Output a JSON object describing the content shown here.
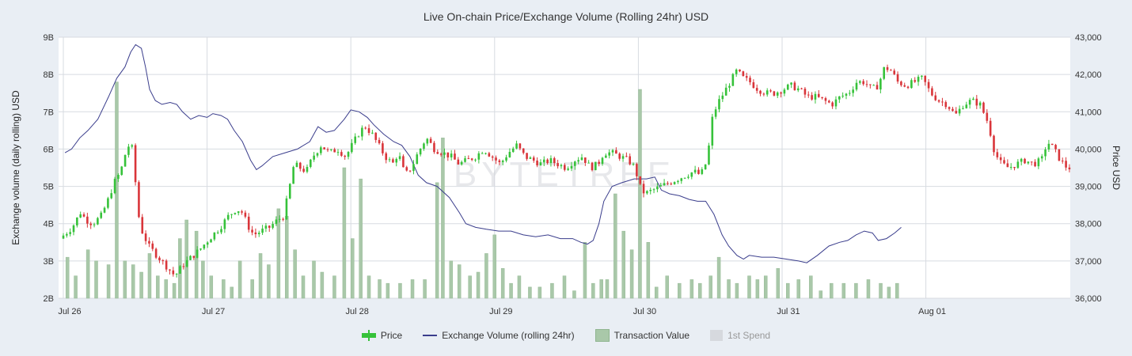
{
  "title": "Live On-chain Price/Exchange Volume (Rolling 24hr) USD",
  "watermark": "BYTETREE",
  "colors": {
    "up": "#36c23a",
    "down": "#d9353a",
    "line": "#3a3d8c",
    "bars": "#a9c8a9",
    "spend": "#d6d9de",
    "grid": "#d7dbe1",
    "plot_bg": "#ffffff"
  },
  "legend": [
    {
      "label": "Price",
      "icon": "candle-icon"
    },
    {
      "label": "Exchange Volume (rolling 24hr)",
      "icon": "line-icon"
    },
    {
      "label": "Transaction Value",
      "icon": "bar-icon"
    },
    {
      "label": "1st Spend",
      "icon": "bar-icon"
    }
  ],
  "chart_data": {
    "type": "candlestick+line+bar",
    "title": "Live On-chain Price/Exchange Volume (Rolling 24hr) USD",
    "x_tick_labels": [
      "Jul 26",
      "Jul 27",
      "Jul 28",
      "Jul 29",
      "Jul 30",
      "Jul 31",
      "Aug 01"
    ],
    "x_range_days": [
      0,
      7.35
    ],
    "left_axis": {
      "label": "Exchange volume (daily rolling) USD",
      "range": [
        2,
        9
      ],
      "ticks": [
        "2B",
        "3B",
        "4B",
        "5B",
        "6B",
        "7B",
        "8B",
        "9B"
      ],
      "unit": "B"
    },
    "right_axis": {
      "label": "Price USD",
      "range": [
        36000,
        43000
      ],
      "ticks": [
        "36,000",
        "37,000",
        "38,000",
        "39,000",
        "40,000",
        "41,000",
        "42,000",
        "43,000"
      ]
    },
    "grid": true,
    "legend_position": "bottom",
    "exchange_volume_B": [
      [
        0.02,
        5.9
      ],
      [
        0.1,
        6.0
      ],
      [
        0.2,
        6.3
      ],
      [
        0.3,
        6.5
      ],
      [
        0.42,
        6.8
      ],
      [
        0.55,
        7.4
      ],
      [
        0.65,
        7.9
      ],
      [
        0.75,
        8.2
      ],
      [
        0.82,
        8.6
      ],
      [
        0.88,
        8.8
      ],
      [
        0.95,
        8.7
      ],
      [
        1.0,
        8.2
      ],
      [
        1.05,
        7.6
      ],
      [
        1.12,
        7.3
      ],
      [
        1.2,
        7.2
      ],
      [
        1.3,
        7.25
      ],
      [
        1.38,
        7.2
      ],
      [
        1.45,
        7.0
      ],
      [
        1.55,
        6.8
      ],
      [
        1.65,
        6.9
      ],
      [
        1.75,
        6.85
      ],
      [
        1.82,
        6.95
      ],
      [
        1.92,
        6.9
      ],
      [
        2.0,
        6.8
      ],
      [
        2.08,
        6.5
      ],
      [
        2.18,
        6.2
      ],
      [
        2.28,
        5.7
      ],
      [
        2.35,
        5.45
      ],
      [
        2.42,
        5.55
      ],
      [
        2.55,
        5.8
      ],
      [
        2.7,
        5.9
      ],
      [
        2.85,
        6.0
      ],
      [
        3.0,
        6.2
      ],
      [
        3.1,
        6.6
      ],
      [
        3.2,
        6.45
      ],
      [
        3.3,
        6.5
      ],
      [
        3.42,
        6.8
      ],
      [
        3.5,
        7.05
      ],
      [
        3.6,
        7.0
      ],
      [
        3.7,
        6.85
      ],
      [
        3.78,
        6.65
      ],
      [
        3.9,
        6.4
      ],
      [
        4.02,
        6.2
      ],
      [
        4.12,
        6.1
      ],
      [
        4.22,
        5.8
      ],
      [
        4.32,
        5.3
      ],
      [
        4.42,
        5.1
      ],
      [
        4.55,
        5.0
      ],
      [
        4.7,
        4.7
      ],
      [
        4.82,
        4.3
      ],
      [
        4.9,
        4.0
      ],
      [
        5.02,
        3.9
      ],
      [
        5.15,
        3.85
      ],
      [
        5.3,
        3.8
      ],
      [
        5.45,
        3.8
      ],
      [
        5.6,
        3.7
      ],
      [
        5.75,
        3.65
      ],
      [
        5.9,
        3.7
      ],
      [
        6.05,
        3.6
      ],
      [
        6.2,
        3.6
      ],
      [
        6.3,
        3.5
      ],
      [
        6.38,
        3.45
      ],
      [
        6.45,
        3.55
      ],
      [
        6.52,
        4.0
      ],
      [
        6.58,
        4.6
      ],
      [
        6.68,
        5.0
      ],
      [
        6.8,
        5.1
      ],
      [
        6.95,
        5.2
      ],
      [
        7.1,
        5.2
      ],
      [
        7.2,
        5.25
      ],
      [
        7.28,
        4.9
      ],
      [
        7.38,
        4.8
      ],
      [
        7.5,
        4.75
      ],
      [
        7.62,
        4.65
      ],
      [
        7.72,
        4.6
      ],
      [
        7.82,
        4.6
      ],
      [
        7.92,
        4.25
      ],
      [
        8.02,
        3.7
      ],
      [
        8.1,
        3.4
      ],
      [
        8.2,
        3.15
      ],
      [
        8.28,
        3.05
      ],
      [
        8.35,
        3.15
      ],
      [
        8.5,
        3.1
      ],
      [
        8.65,
        3.1
      ],
      [
        8.8,
        3.05
      ],
      [
        8.95,
        3.0
      ],
      [
        9.05,
        2.95
      ],
      [
        9.18,
        3.15
      ],
      [
        9.32,
        3.4
      ],
      [
        9.45,
        3.5
      ],
      [
        9.55,
        3.55
      ],
      [
        9.65,
        3.7
      ],
      [
        9.75,
        3.8
      ],
      [
        9.85,
        3.75
      ],
      [
        9.92,
        3.55
      ],
      [
        10.02,
        3.6
      ],
      [
        10.12,
        3.75
      ],
      [
        10.2,
        3.9
      ]
    ],
    "transaction_value_B": [
      [
        0.05,
        3.1
      ],
      [
        0.15,
        2.6
      ],
      [
        0.3,
        3.3
      ],
      [
        0.4,
        3.0
      ],
      [
        0.55,
        2.9
      ],
      [
        0.65,
        7.8
      ],
      [
        0.75,
        3.0
      ],
      [
        0.85,
        2.9
      ],
      [
        0.95,
        2.7
      ],
      [
        1.05,
        3.2
      ],
      [
        1.15,
        2.6
      ],
      [
        1.25,
        2.5
      ],
      [
        1.35,
        2.4
      ],
      [
        1.42,
        3.6
      ],
      [
        1.5,
        4.1
      ],
      [
        1.62,
        3.8
      ],
      [
        1.7,
        3.0
      ],
      [
        1.8,
        2.6
      ],
      [
        1.95,
        2.5
      ],
      [
        2.05,
        2.3
      ],
      [
        2.15,
        3.0
      ],
      [
        2.3,
        2.5
      ],
      [
        2.4,
        3.2
      ],
      [
        2.5,
        2.9
      ],
      [
        2.62,
        4.4
      ],
      [
        2.72,
        4.2
      ],
      [
        2.82,
        3.3
      ],
      [
        2.92,
        2.6
      ],
      [
        3.05,
        3.0
      ],
      [
        3.15,
        2.7
      ],
      [
        3.3,
        2.6
      ],
      [
        3.42,
        5.5
      ],
      [
        3.52,
        3.6
      ],
      [
        3.62,
        5.2
      ],
      [
        3.72,
        2.6
      ],
      [
        3.85,
        2.5
      ],
      [
        3.95,
        2.4
      ],
      [
        4.1,
        2.4
      ],
      [
        4.25,
        2.5
      ],
      [
        4.4,
        2.5
      ],
      [
        4.55,
        5.1
      ],
      [
        4.62,
        6.3
      ],
      [
        4.72,
        3.0
      ],
      [
        4.82,
        2.9
      ],
      [
        4.95,
        2.6
      ],
      [
        5.05,
        2.7
      ],
      [
        5.15,
        3.2
      ],
      [
        5.25,
        3.7
      ],
      [
        5.35,
        2.8
      ],
      [
        5.45,
        2.4
      ],
      [
        5.55,
        2.6
      ],
      [
        5.68,
        2.3
      ],
      [
        5.8,
        2.3
      ],
      [
        5.95,
        2.4
      ],
      [
        6.1,
        2.6
      ],
      [
        6.22,
        2.2
      ],
      [
        6.35,
        3.5
      ],
      [
        6.45,
        2.4
      ],
      [
        6.55,
        2.5
      ],
      [
        6.62,
        2.5
      ],
      [
        6.72,
        4.8
      ],
      [
        6.82,
        3.8
      ],
      [
        6.92,
        3.3
      ],
      [
        7.02,
        7.6
      ],
      [
        7.12,
        3.5
      ],
      [
        7.22,
        2.3
      ],
      [
        7.35,
        2.6
      ],
      [
        7.5,
        2.4
      ],
      [
        7.65,
        2.5
      ],
      [
        7.75,
        2.4
      ],
      [
        7.88,
        2.6
      ],
      [
        7.98,
        3.1
      ],
      [
        8.1,
        2.5
      ],
      [
        8.2,
        2.4
      ],
      [
        8.35,
        2.6
      ],
      [
        8.45,
        2.5
      ],
      [
        8.55,
        2.6
      ],
      [
        8.7,
        2.8
      ],
      [
        8.82,
        2.4
      ],
      [
        8.95,
        2.5
      ],
      [
        9.1,
        2.6
      ],
      [
        9.22,
        2.2
      ],
      [
        9.35,
        2.4
      ],
      [
        9.5,
        2.4
      ],
      [
        9.65,
        2.4
      ],
      [
        9.8,
        2.5
      ],
      [
        9.95,
        2.4
      ],
      [
        10.05,
        2.3
      ],
      [
        10.15,
        2.4
      ]
    ],
    "price_path_usd": [
      [
        0.0,
        37600
      ],
      [
        0.15,
        37900
      ],
      [
        0.25,
        38300
      ],
      [
        0.32,
        38100
      ],
      [
        0.4,
        38000
      ],
      [
        0.5,
        38200
      ],
      [
        0.58,
        38600
      ],
      [
        0.66,
        39100
      ],
      [
        0.74,
        39400
      ],
      [
        0.8,
        39900
      ],
      [
        0.86,
        40200
      ],
      [
        0.9,
        39800
      ],
      [
        0.94,
        38400
      ],
      [
        1.0,
        37800
      ],
      [
        1.08,
        37400
      ],
      [
        1.16,
        37200
      ],
      [
        1.24,
        37000
      ],
      [
        1.32,
        36800
      ],
      [
        1.4,
        36600
      ],
      [
        1.5,
        36900
      ],
      [
        1.6,
        37100
      ],
      [
        1.7,
        37300
      ],
      [
        1.82,
        37600
      ],
      [
        1.95,
        37900
      ],
      [
        2.05,
        38200
      ],
      [
        2.15,
        38400
      ],
      [
        2.22,
        38300
      ],
      [
        2.3,
        37900
      ],
      [
        2.36,
        37700
      ],
      [
        2.45,
        37800
      ],
      [
        2.55,
        37900
      ],
      [
        2.65,
        38100
      ],
      [
        2.72,
        38200
      ],
      [
        2.78,
        38800
      ],
      [
        2.85,
        39600
      ],
      [
        2.92,
        39500
      ],
      [
        3.0,
        39400
      ],
      [
        3.08,
        39800
      ],
      [
        3.18,
        40100
      ],
      [
        3.28,
        39900
      ],
      [
        3.38,
        40000
      ],
      [
        3.48,
        39800
      ],
      [
        3.58,
        40200
      ],
      [
        3.66,
        40500
      ],
      [
        3.72,
        40600
      ],
      [
        3.8,
        40400
      ],
      [
        3.88,
        40100
      ],
      [
        3.96,
        39800
      ],
      [
        4.05,
        39600
      ],
      [
        4.12,
        39900
      ],
      [
        4.2,
        39300
      ],
      [
        4.28,
        39500
      ],
      [
        4.36,
        39900
      ],
      [
        4.46,
        40300
      ],
      [
        4.56,
        40000
      ],
      [
        4.66,
        39900
      ],
      [
        4.76,
        39800
      ],
      [
        4.86,
        39600
      ],
      [
        4.96,
        39700
      ],
      [
        5.06,
        39800
      ],
      [
        5.16,
        40000
      ],
      [
        5.26,
        39800
      ],
      [
        5.36,
        39600
      ],
      [
        5.46,
        39900
      ],
      [
        5.56,
        40100
      ],
      [
        5.66,
        39800
      ],
      [
        5.76,
        39700
      ],
      [
        5.86,
        39600
      ],
      [
        5.96,
        39700
      ],
      [
        6.06,
        39600
      ],
      [
        6.16,
        39500
      ],
      [
        6.26,
        39700
      ],
      [
        6.36,
        39800
      ],
      [
        6.46,
        39500
      ],
      [
        6.55,
        39600
      ],
      [
        6.62,
        39900
      ],
      [
        6.72,
        39900
      ],
      [
        6.82,
        39800
      ],
      [
        6.92,
        39700
      ],
      [
        7.0,
        39500
      ],
      [
        7.06,
        39000
      ],
      [
        7.12,
        38800
      ],
      [
        7.22,
        38900
      ],
      [
        7.32,
        39000
      ],
      [
        7.42,
        39100
      ],
      [
        7.52,
        39200
      ],
      [
        7.62,
        39300
      ],
      [
        7.72,
        39400
      ],
      [
        7.8,
        39300
      ],
      [
        7.88,
        39700
      ],
      [
        7.94,
        40800
      ],
      [
        8.0,
        41200
      ],
      [
        8.08,
        41500
      ],
      [
        8.16,
        41800
      ],
      [
        8.24,
        42100
      ],
      [
        8.32,
        41900
      ],
      [
        8.4,
        41800
      ],
      [
        8.5,
        41600
      ],
      [
        8.6,
        41500
      ],
      [
        8.7,
        41500
      ],
      [
        8.8,
        41600
      ],
      [
        8.9,
        41700
      ],
      [
        9.0,
        41600
      ],
      [
        9.1,
        41400
      ],
      [
        9.2,
        41400
      ],
      [
        9.3,
        41300
      ],
      [
        9.4,
        41200
      ],
      [
        9.5,
        41400
      ],
      [
        9.6,
        41500
      ],
      [
        9.7,
        41800
      ],
      [
        9.8,
        41800
      ],
      [
        9.88,
        41600
      ],
      [
        9.96,
        41700
      ],
      [
        10.04,
        42200
      ],
      [
        10.12,
        42100
      ],
      [
        10.2,
        41800
      ],
      [
        10.3,
        41700
      ],
      [
        10.4,
        41800
      ],
      [
        10.5,
        41900
      ],
      [
        10.6,
        41500
      ],
      [
        10.7,
        41300
      ],
      [
        10.8,
        41200
      ],
      [
        10.9,
        40900
      ],
      [
        11.0,
        41200
      ],
      [
        11.1,
        41300
      ],
      [
        11.2,
        41200
      ],
      [
        11.3,
        40700
      ],
      [
        11.38,
        39900
      ],
      [
        11.46,
        39600
      ],
      [
        11.55,
        39500
      ],
      [
        11.65,
        39600
      ],
      [
        11.75,
        39700
      ],
      [
        11.85,
        39600
      ],
      [
        11.95,
        39700
      ],
      [
        12.02,
        40200
      ],
      [
        12.1,
        40000
      ],
      [
        12.18,
        39700
      ],
      [
        12.26,
        39500
      ]
    ]
  }
}
